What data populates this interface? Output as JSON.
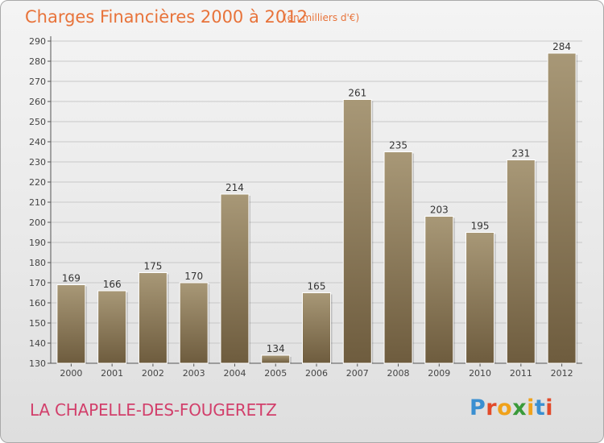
{
  "header": {
    "title": "Charges Financières 2000 à 2012",
    "subtitle": "(en milliers d'€)"
  },
  "footer": {
    "location": "LA CHAPELLE-DES-FOUGERETZ",
    "logo_text": "Proxiti",
    "logo_colors": [
      "#3a8fd1",
      "#e24a2a",
      "#f0a21b",
      "#3a9a3a",
      "#f0a21b",
      "#3a8fd1",
      "#e24a2a"
    ]
  },
  "colors": {
    "bar_top": "#a89877",
    "bar_bottom": "#6e5c3e",
    "grid": "#c8c8c8",
    "axis": "#555555"
  },
  "chart_data": {
    "type": "bar",
    "title": "Charges Financières 2000 à 2012",
    "subtitle": "(en milliers d'€)",
    "categories": [
      "2000",
      "2001",
      "2002",
      "2003",
      "2004",
      "2005",
      "2006",
      "2007",
      "2008",
      "2009",
      "2010",
      "2011",
      "2012"
    ],
    "values": [
      169,
      166,
      175,
      170,
      214,
      134,
      165,
      261,
      235,
      203,
      195,
      231,
      284
    ],
    "ylim": [
      130,
      290
    ],
    "yticks": [
      130,
      140,
      150,
      160,
      170,
      180,
      190,
      200,
      210,
      220,
      230,
      240,
      250,
      260,
      270,
      280,
      290
    ],
    "xlabel": "",
    "ylabel": "",
    "grid": true,
    "data_labels": true
  }
}
